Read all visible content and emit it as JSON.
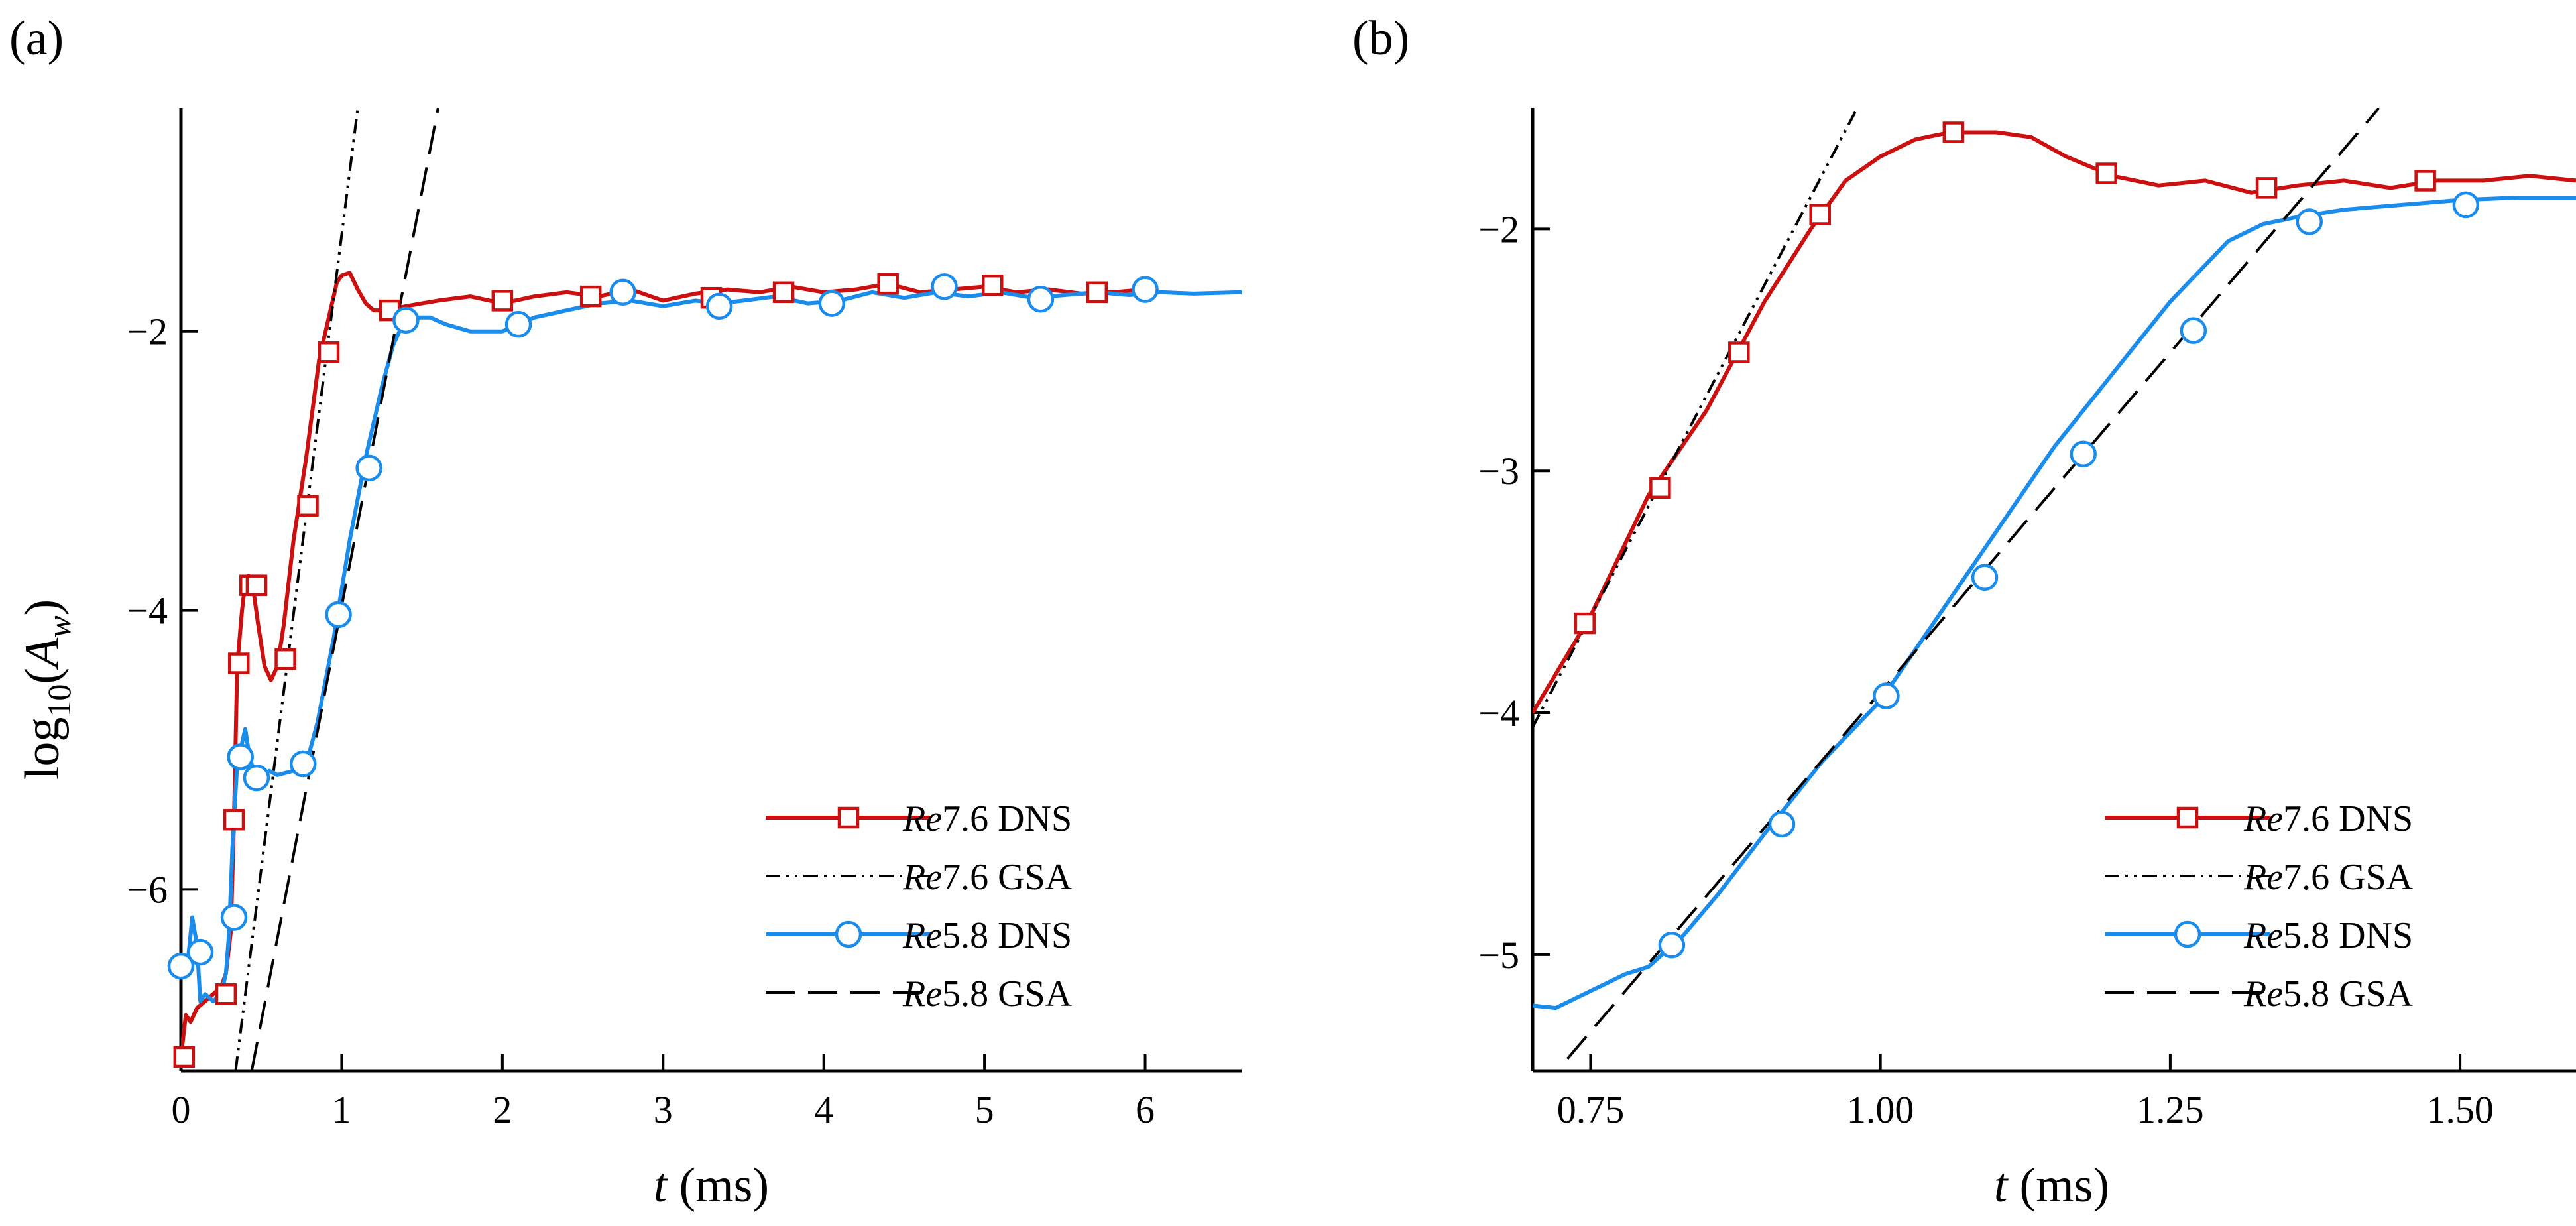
{
  "colors": {
    "re76": "#cc1010",
    "re58": "#1a8ceb",
    "gsa": "#000000"
  },
  "legend": {
    "location": "lower-right",
    "entries": [
      {
        "re": "Re",
        "num": "7.6",
        "tag": "DNS",
        "style": "red-solid-square"
      },
      {
        "re": "Re",
        "num": "7.6",
        "tag": "GSA",
        "style": "black-dashdotdot"
      },
      {
        "re": "Re",
        "num": "5.8",
        "tag": "DNS",
        "style": "blue-solid-circle"
      },
      {
        "re": "Re",
        "num": "5.8",
        "tag": "GSA",
        "style": "black-dashed"
      }
    ]
  },
  "chart_data": [
    {
      "type": "line",
      "panel_label": "(a)",
      "xlabel": {
        "var": "t",
        "unit": "(ms)"
      },
      "ylabel": {
        "prefix": "log",
        "sub": "10",
        "open": "(",
        "var": "A",
        "varsub": "w",
        "close": ")"
      },
      "xlim": [
        0,
        6.6
      ],
      "ylim": [
        -7.3,
        -0.4
      ],
      "xticks": [
        0,
        1,
        2,
        3,
        4,
        5,
        6
      ],
      "xtick_labels": [
        "0",
        "1",
        "2",
        "3",
        "4",
        "5",
        "6"
      ],
      "yticks": [
        -6,
        -4,
        -2
      ],
      "ytick_labels": [
        "−6",
        "−4",
        "−2"
      ],
      "series": [
        {
          "name": "Re7.6 DNS",
          "x": [
            0,
            0.03,
            0.06,
            0.1,
            0.15,
            0.2,
            0.25,
            0.28,
            0.31,
            0.33,
            0.35,
            0.38,
            0.4,
            0.42,
            0.45,
            0.48,
            0.52,
            0.56,
            0.6,
            0.64,
            0.7,
            0.78,
            0.86,
            0.92,
            0.97,
            1.0,
            1.05,
            1.1,
            1.15,
            1.2,
            1.3,
            1.4,
            1.5,
            1.6,
            1.8,
            2.0,
            2.2,
            2.4,
            2.6,
            2.8,
            3.0,
            3.2,
            3.4,
            3.6,
            3.8,
            4.0,
            4.2,
            4.4,
            4.6,
            4.8,
            5.0,
            5.2,
            5.4,
            5.6,
            5.8,
            6.0
          ],
          "y": [
            -7.2,
            -6.9,
            -6.95,
            -6.85,
            -6.8,
            -6.75,
            -6.7,
            -6.6,
            -6.3,
            -5.5,
            -4.4,
            -4.0,
            -3.8,
            -3.75,
            -3.85,
            -4.1,
            -4.4,
            -4.5,
            -4.4,
            -4.1,
            -3.5,
            -2.9,
            -2.2,
            -1.9,
            -1.65,
            -1.6,
            -1.58,
            -1.7,
            -1.8,
            -1.85,
            -1.85,
            -1.82,
            -1.8,
            -1.78,
            -1.75,
            -1.8,
            -1.75,
            -1.72,
            -1.75,
            -1.7,
            -1.78,
            -1.73,
            -1.7,
            -1.72,
            -1.68,
            -1.72,
            -1.7,
            -1.66,
            -1.72,
            -1.7,
            -1.68,
            -1.72,
            -1.7,
            -1.73,
            -1.72,
            -1.7
          ],
          "markers": {
            "x": [
              0.02,
              0.28,
              0.33,
              0.36,
              0.43,
              0.47,
              0.65,
              0.79,
              0.92,
              1.3,
              2.0,
              2.55,
              3.3,
              3.75,
              4.4,
              5.05,
              5.7
            ],
            "y": [
              -7.2,
              -6.75,
              -5.5,
              -4.38,
              -3.82,
              -3.82,
              -4.35,
              -3.25,
              -2.15,
              -1.85,
              -1.78,
              -1.75,
              -1.76,
              -1.72,
              -1.66,
              -1.67,
              -1.72
            ]
          }
        },
        {
          "name": "Re7.6 GSA",
          "x": [
            0.34,
            1.1
          ],
          "y": [
            -7.3,
            -0.4
          ]
        },
        {
          "name": "Re5.8 DNS",
          "x": [
            0,
            0.04,
            0.07,
            0.1,
            0.12,
            0.15,
            0.2,
            0.25,
            0.28,
            0.3,
            0.32,
            0.35,
            0.38,
            0.4,
            0.42,
            0.45,
            0.5,
            0.55,
            0.6,
            0.7,
            0.78,
            0.85,
            0.95,
            1.05,
            1.15,
            1.25,
            1.32,
            1.38,
            1.45,
            1.55,
            1.65,
            1.8,
            2.0,
            2.1,
            2.2,
            2.4,
            2.6,
            2.8,
            3.0,
            3.2,
            3.35,
            3.5,
            3.7,
            3.9,
            4.1,
            4.3,
            4.5,
            4.7,
            4.9,
            5.1,
            5.3,
            5.5,
            5.7,
            5.9,
            6.1,
            6.3,
            6.6
          ],
          "y": [
            -6.6,
            -6.55,
            -6.2,
            -6.4,
            -6.8,
            -6.75,
            -6.8,
            -6.75,
            -6.6,
            -6.3,
            -5.7,
            -5.1,
            -4.95,
            -4.85,
            -5.0,
            -5.15,
            -5.2,
            -5.15,
            -5.18,
            -5.15,
            -5.1,
            -4.8,
            -4.2,
            -3.5,
            -2.9,
            -2.4,
            -2.1,
            -1.95,
            -1.9,
            -1.9,
            -1.95,
            -2.0,
            -2.0,
            -1.95,
            -1.9,
            -1.85,
            -1.8,
            -1.78,
            -1.82,
            -1.78,
            -1.8,
            -1.78,
            -1.75,
            -1.8,
            -1.78,
            -1.72,
            -1.76,
            -1.72,
            -1.75,
            -1.72,
            -1.76,
            -1.74,
            -1.72,
            -1.74,
            -1.72,
            -1.73,
            -1.72
          ],
          "markers": {
            "x": [
              0.0,
              0.12,
              0.33,
              0.37,
              0.47,
              0.76,
              0.98,
              1.17,
              1.4,
              2.1,
              2.75,
              3.35,
              4.05,
              4.75,
              5.35,
              6.0
            ],
            "y": [
              -6.55,
              -6.45,
              -6.2,
              -5.05,
              -5.2,
              -5.1,
              -4.03,
              -2.98,
              -1.92,
              -1.95,
              -1.72,
              -1.82,
              -1.8,
              -1.68,
              -1.77,
              -1.7
            ]
          }
        },
        {
          "name": "Re5.8 GSA",
          "x": [
            0.44,
            1.6
          ],
          "y": [
            -7.3,
            -0.4
          ]
        }
      ]
    },
    {
      "type": "line",
      "panel_label": "(b)",
      "xlabel": {
        "var": "t",
        "unit": "(ms)"
      },
      "ylabel": null,
      "xlim": [
        0.7,
        1.6
      ],
      "ylim": [
        -5.48,
        -1.5
      ],
      "xticks": [
        0.75,
        1.0,
        1.25,
        1.5
      ],
      "xtick_labels": [
        "0.75",
        "1.00",
        "1.25",
        "1.50"
      ],
      "yticks": [
        -5,
        -4,
        -3,
        -2
      ],
      "ytick_labels": [
        "−5",
        "−4",
        "−3",
        "−2"
      ],
      "series": [
        {
          "name": "Re7.6 DNS",
          "x": [
            0.7,
            0.75,
            0.8,
            0.85,
            0.9,
            0.94,
            0.97,
            1.0,
            1.03,
            1.06,
            1.1,
            1.13,
            1.16,
            1.2,
            1.24,
            1.28,
            1.32,
            1.36,
            1.4,
            1.44,
            1.48,
            1.52,
            1.56,
            1.6
          ],
          "y": [
            -4.0,
            -3.6,
            -3.1,
            -2.75,
            -2.3,
            -2.0,
            -1.8,
            -1.7,
            -1.63,
            -1.6,
            -1.6,
            -1.62,
            -1.7,
            -1.78,
            -1.82,
            -1.8,
            -1.85,
            -1.82,
            -1.8,
            -1.83,
            -1.8,
            -1.8,
            -1.78,
            -1.8
          ],
          "markers": {
            "x": [
              0.745,
              0.81,
              0.878,
              0.948,
              1.063,
              1.195,
              1.333,
              1.47
            ],
            "y": [
              -3.63,
              -3.07,
              -2.51,
              -1.94,
              -1.6,
              -1.77,
              -1.83,
              -1.8
            ]
          }
        },
        {
          "name": "Re7.6 GSA",
          "x": [
            0.7,
            0.98
          ],
          "y": [
            -4.06,
            -1.5
          ]
        },
        {
          "name": "Re5.8 DNS",
          "x": [
            0.7,
            0.72,
            0.75,
            0.78,
            0.8,
            0.83,
            0.86,
            0.9,
            0.95,
            1.0,
            1.05,
            1.1,
            1.15,
            1.2,
            1.25,
            1.3,
            1.33,
            1.36,
            1.4,
            1.45,
            1.5,
            1.55,
            1.6
          ],
          "y": [
            -5.21,
            -5.22,
            -5.15,
            -5.08,
            -5.05,
            -4.92,
            -4.75,
            -4.5,
            -4.2,
            -3.95,
            -3.6,
            -3.25,
            -2.9,
            -2.6,
            -2.3,
            -2.05,
            -1.98,
            -1.95,
            -1.92,
            -1.9,
            -1.88,
            -1.87,
            -1.87
          ],
          "markers": {
            "x": [
              0.82,
              0.915,
              1.005,
              1.09,
              1.175,
              1.27,
              1.37,
              1.505
            ],
            "y": [
              -4.96,
              -4.46,
              -3.93,
              -3.44,
              -2.93,
              -2.42,
              -1.97,
              -1.9
            ]
          }
        },
        {
          "name": "Re5.8 GSA",
          "x": [
            0.73,
            1.43
          ],
          "y": [
            -5.43,
            -1.5
          ]
        }
      ]
    }
  ]
}
